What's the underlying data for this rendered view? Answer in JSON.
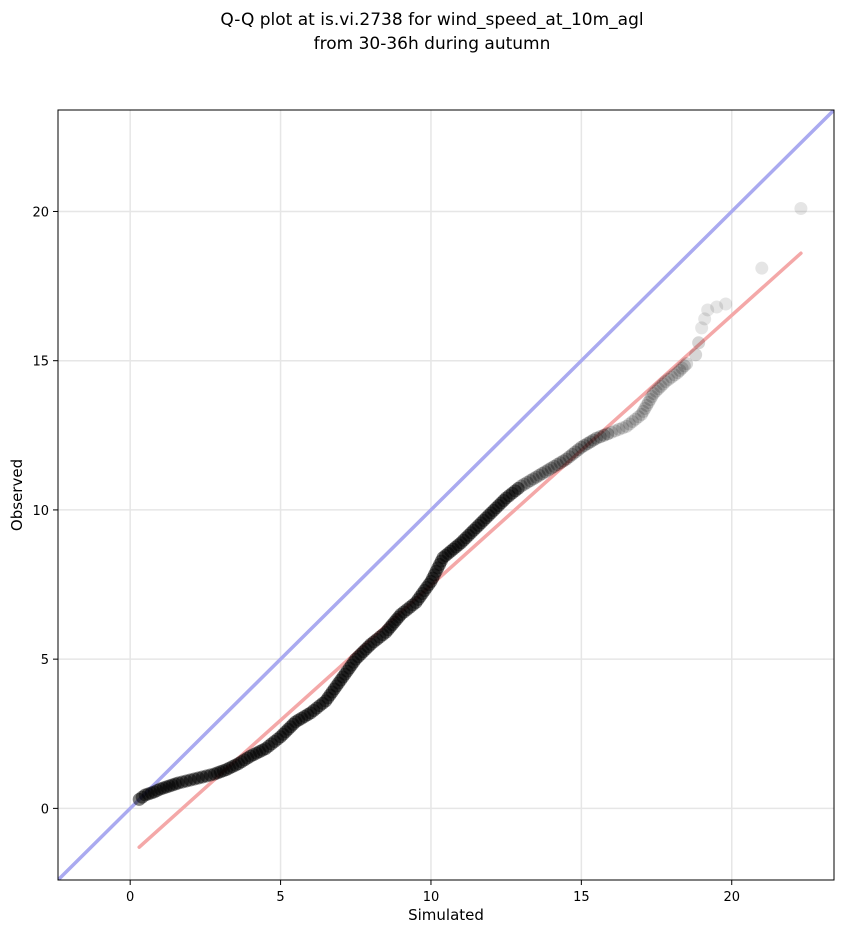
{
  "chart_data": {
    "type": "scatter",
    "title": "Q-Q plot at is.vi.2738 for wind_speed_at_10m_agl",
    "subtitle": "from 30-36h during autumn",
    "xlabel": "Simulated",
    "ylabel": "Observed",
    "xlim": [
      -2.4,
      23.4
    ],
    "ylim": [
      -2.4,
      23.4
    ],
    "xticks": [
      0,
      5,
      10,
      15,
      20
    ],
    "yticks": [
      0,
      5,
      10,
      15,
      20
    ],
    "grid": true,
    "colors": {
      "points": "#000000",
      "identity_line": "#aaaaf0",
      "fit_line": "#f4a8a8"
    },
    "identity_line": {
      "x": [
        -2.4,
        23.4
      ],
      "y": [
        -2.4,
        23.4
      ]
    },
    "fit_line": {
      "x": [
        0.3,
        22.3
      ],
      "y": [
        -1.3,
        18.6
      ]
    },
    "quantiles": [
      [
        0.3,
        0.3
      ],
      [
        0.5,
        0.45
      ],
      [
        0.8,
        0.55
      ],
      [
        1.0,
        0.65
      ],
      [
        1.3,
        0.75
      ],
      [
        1.6,
        0.85
      ],
      [
        2.0,
        0.95
      ],
      [
        2.4,
        1.05
      ],
      [
        2.8,
        1.15
      ],
      [
        3.2,
        1.3
      ],
      [
        3.6,
        1.5
      ],
      [
        4.0,
        1.75
      ],
      [
        4.5,
        2.0
      ],
      [
        5.0,
        2.4
      ],
      [
        5.5,
        2.9
      ],
      [
        6.0,
        3.2
      ],
      [
        6.5,
        3.6
      ],
      [
        7.0,
        4.3
      ],
      [
        7.5,
        5.0
      ],
      [
        8.0,
        5.5
      ],
      [
        8.5,
        5.9
      ],
      [
        9.0,
        6.5
      ],
      [
        9.5,
        6.9
      ],
      [
        10.0,
        7.6
      ],
      [
        10.4,
        8.4
      ],
      [
        11.0,
        8.9
      ],
      [
        11.5,
        9.4
      ],
      [
        12.0,
        9.9
      ],
      [
        12.5,
        10.4
      ],
      [
        13.0,
        10.8
      ],
      [
        13.5,
        11.1
      ],
      [
        14.0,
        11.4
      ],
      [
        14.5,
        11.7
      ],
      [
        15.0,
        12.1
      ],
      [
        15.5,
        12.4
      ],
      [
        16.0,
        12.6
      ],
      [
        16.5,
        12.8
      ],
      [
        17.0,
        13.2
      ],
      [
        17.4,
        13.9
      ],
      [
        17.8,
        14.3
      ],
      [
        18.2,
        14.6
      ],
      [
        18.5,
        14.9
      ],
      [
        18.8,
        15.2
      ],
      [
        18.9,
        15.6
      ],
      [
        19.0,
        16.1
      ],
      [
        19.1,
        16.4
      ],
      [
        19.2,
        16.7
      ],
      [
        19.5,
        16.8
      ],
      [
        19.8,
        16.9
      ],
      [
        21.0,
        18.1
      ],
      [
        22.3,
        20.1
      ]
    ]
  }
}
